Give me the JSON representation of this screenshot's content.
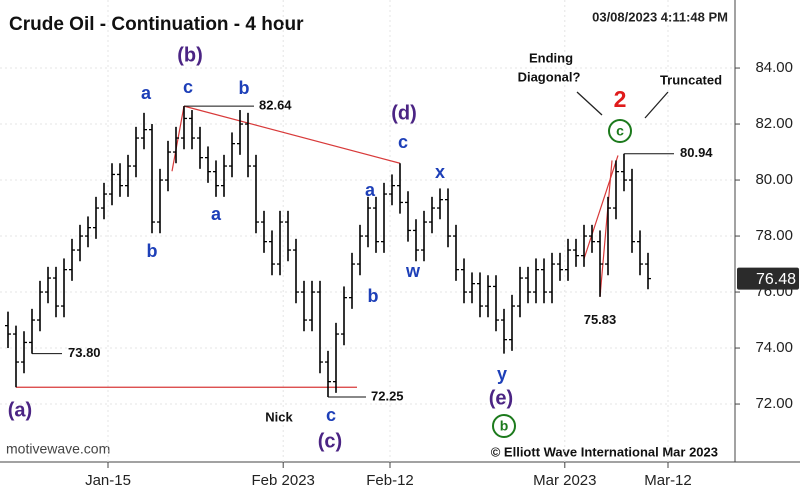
{
  "chart_data": {
    "type": "ohlc",
    "title": "Crude Oil - Continuation - 4 hour",
    "timestamp": "03/08/2023 4:11:48 PM",
    "watermark": "motivewave.com",
    "copyright": "© Elliott Wave International Mar 2023",
    "color": "#000000",
    "open": [
      74.8,
      74.5,
      73.5,
      74.2,
      75.0,
      76.0,
      76.5,
      75.5,
      76.8,
      77.5,
      78.0,
      78.3,
      79.0,
      79.5,
      80.2,
      79.8,
      80.5,
      81.5,
      81.8,
      78.5,
      80.0,
      81.0,
      81.5,
      82.2,
      81.5,
      80.8,
      80.3,
      79.8,
      80.5,
      81.3,
      82.0,
      80.5,
      78.5,
      77.8,
      77.0,
      78.5,
      77.5,
      76.0,
      75.0,
      76.0,
      73.5,
      72.8,
      74.5,
      75.8,
      77.0,
      78.0,
      79.0,
      77.8,
      79.5,
      79.8,
      79.2,
      78.2,
      77.5,
      78.5,
      79.0,
      79.3,
      78.0,
      76.8,
      76.0,
      76.3,
      75.5,
      76.2,
      75.0,
      74.3,
      75.5,
      76.5,
      76.0,
      76.8,
      76.0,
      77.0,
      76.8,
      77.5,
      77.3,
      78.0,
      77.8,
      77.0,
      79.0,
      80.3,
      80.0,
      77.8,
      77.0
    ],
    "high": [
      75.3,
      74.8,
      74.6,
      75.4,
      76.4,
      76.9,
      76.9,
      77.2,
      77.9,
      78.4,
      78.7,
      79.4,
      79.9,
      80.6,
      80.6,
      80.9,
      81.9,
      82.4,
      82.0,
      80.4,
      81.4,
      81.9,
      82.64,
      82.5,
      81.9,
      81.2,
      80.7,
      80.9,
      81.7,
      82.5,
      82.4,
      80.9,
      78.9,
      78.2,
      78.9,
      78.9,
      77.9,
      76.4,
      76.4,
      76.4,
      73.9,
      74.9,
      76.2,
      77.4,
      78.4,
      79.4,
      79.4,
      79.9,
      80.2,
      80.6,
      79.6,
      78.6,
      78.9,
      79.4,
      79.7,
      79.7,
      78.4,
      77.2,
      76.7,
      76.7,
      76.6,
      76.6,
      75.4,
      75.9,
      76.9,
      76.9,
      77.2,
      77.2,
      77.4,
      77.4,
      77.9,
      77.9,
      78.4,
      78.4,
      78.2,
      79.4,
      80.7,
      80.94,
      80.4,
      78.2,
      77.4
    ],
    "low": [
      74.0,
      72.6,
      73.1,
      73.8,
      74.6,
      75.6,
      75.1,
      75.1,
      76.4,
      77.1,
      77.6,
      77.9,
      78.6,
      79.1,
      79.4,
      79.4,
      80.1,
      81.1,
      78.1,
      78.1,
      79.6,
      80.6,
      81.1,
      81.1,
      80.4,
      79.9,
      79.4,
      79.4,
      80.1,
      80.9,
      80.1,
      78.1,
      77.4,
      76.6,
      76.6,
      77.1,
      75.6,
      74.6,
      74.6,
      73.1,
      72.25,
      72.4,
      74.1,
      75.4,
      76.6,
      77.6,
      77.4,
      77.4,
      79.1,
      78.8,
      77.8,
      77.1,
      77.1,
      78.1,
      78.6,
      77.6,
      76.4,
      75.6,
      75.6,
      75.1,
      75.1,
      74.6,
      73.8,
      73.9,
      75.1,
      75.6,
      75.6,
      75.6,
      75.6,
      76.4,
      76.4,
      76.9,
      76.9,
      77.4,
      75.83,
      76.6,
      78.6,
      79.6,
      77.4,
      76.6,
      76.1
    ],
    "close": [
      74.5,
      73.5,
      74.2,
      75.0,
      76.0,
      76.5,
      75.5,
      76.8,
      77.5,
      78.0,
      78.3,
      79.0,
      79.5,
      80.2,
      79.8,
      80.5,
      81.5,
      81.8,
      78.5,
      80.0,
      81.0,
      81.5,
      82.2,
      81.5,
      80.8,
      80.3,
      79.8,
      80.5,
      81.3,
      82.0,
      80.5,
      78.5,
      77.8,
      77.0,
      78.5,
      77.5,
      76.0,
      75.0,
      76.0,
      73.5,
      72.8,
      74.5,
      75.8,
      77.0,
      78.0,
      79.0,
      77.8,
      79.5,
      79.8,
      79.2,
      78.2,
      77.5,
      78.5,
      79.0,
      79.3,
      78.0,
      76.8,
      76.0,
      76.3,
      75.5,
      76.2,
      75.0,
      74.3,
      75.5,
      76.5,
      76.0,
      76.8,
      76.0,
      77.0,
      76.8,
      77.5,
      77.3,
      78.0,
      77.8,
      77.0,
      79.0,
      80.3,
      80.0,
      77.8,
      77.0,
      76.48
    ],
    "xlim": [
      -1,
      90.875
    ],
    "xticks": [
      {
        "value": 12.5,
        "label": "Jan-15"
      },
      {
        "value": 34.4,
        "label": "Feb 2023"
      },
      {
        "value": 47.75,
        "label": "Feb-12"
      },
      {
        "value": 69.6,
        "label": "Mar 2023"
      },
      {
        "value": 82.5,
        "label": "Mar-12"
      }
    ],
    "ylim": [
      69.93,
      86.43
    ],
    "yticks": [
      {
        "value": 72,
        "label": "72.00"
      },
      {
        "value": 74,
        "label": "74.00"
      },
      {
        "value": 76,
        "label": "76.00"
      },
      {
        "value": 78,
        "label": "78.00"
      },
      {
        "value": 80,
        "label": "80.00"
      },
      {
        "value": 82,
        "label": "82.00"
      },
      {
        "value": 84,
        "label": "84.00"
      }
    ],
    "grid": true,
    "price_labels": [
      82.64,
      72.25,
      80.94,
      {
        "value": 73.8,
        "label": "73.80"
      },
      75.83
    ],
    "wave_labels": {
      "intermediate": [
        "(a)",
        "(b)",
        "(c)",
        "(d)",
        "(e)"
      ],
      "minor": [
        "a",
        "c",
        "b",
        "b",
        "a",
        "c",
        "a",
        "b",
        "c",
        "w",
        "x",
        "y"
      ],
      "primary": [
        "2"
      ],
      "minute": [
        "c",
        "b"
      ]
    },
    "notes": [
      "Nick",
      "Ending",
      "Diagonal?",
      "Truncated"
    ]
  }
}
